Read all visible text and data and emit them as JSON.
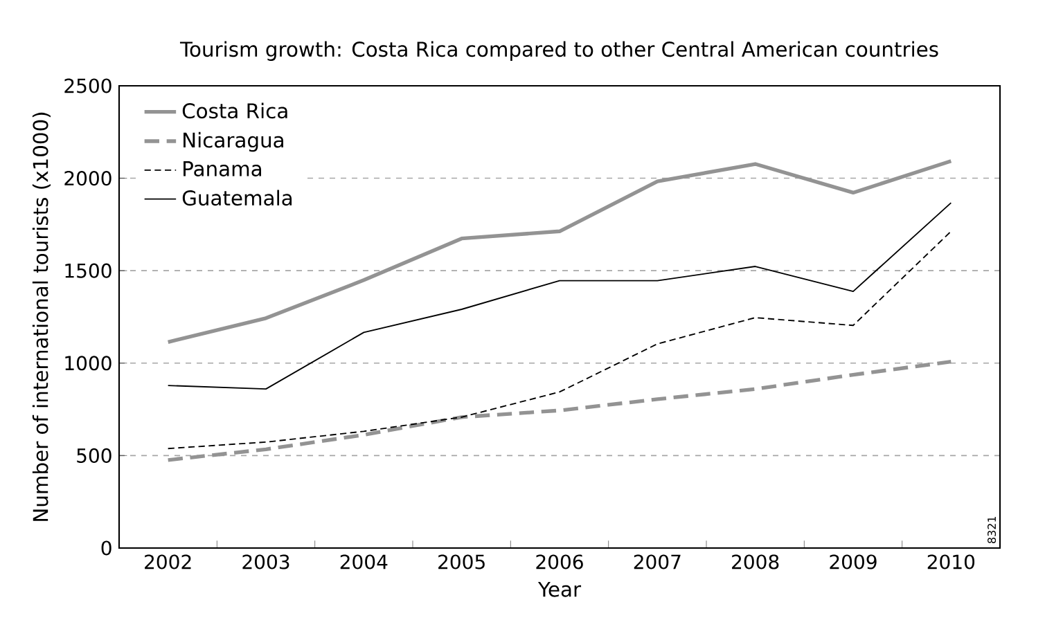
{
  "chart_data": {
    "type": "line",
    "title": "Tourism growth: Costa Rica compared to other Central American countries",
    "xlabel": "Year",
    "ylabel": "Number of international tourists (x1000)",
    "categories": [
      "2002",
      "2003",
      "2004",
      "2005",
      "2006",
      "2007",
      "2008",
      "2009",
      "2010"
    ],
    "series": [
      {
        "name": "Costa Rica",
        "color": "#939393",
        "line_style": "solid",
        "values": [
          1114,
          1243,
          1449,
          1674,
          1713,
          1983,
          2077,
          1922,
          2093
        ]
      },
      {
        "name": "Nicaragua",
        "color": "#939393",
        "line_style": "dashed",
        "values": [
          476,
          534,
          612,
          708,
          744,
          805,
          860,
          937,
          1008
        ]
      },
      {
        "name": "Panama",
        "color": "#000000",
        "line_style": "dashed",
        "values": [
          538,
          573,
          631,
          708,
          844,
          1104,
          1246,
          1204,
          1713
        ]
      },
      {
        "name": "Guatemala",
        "color": "#000000",
        "line_style": "solid",
        "values": [
          879,
          860,
          1166,
          1291,
          1446,
          1446,
          1523,
          1388,
          1867
        ]
      }
    ],
    "ylim": [
      0,
      2500
    ],
    "yticks": [
      0,
      500,
      1000,
      1500,
      2000,
      2500
    ],
    "grid": "y",
    "legend": "top left",
    "marker": "none",
    "annotations": [
      "8321"
    ]
  }
}
